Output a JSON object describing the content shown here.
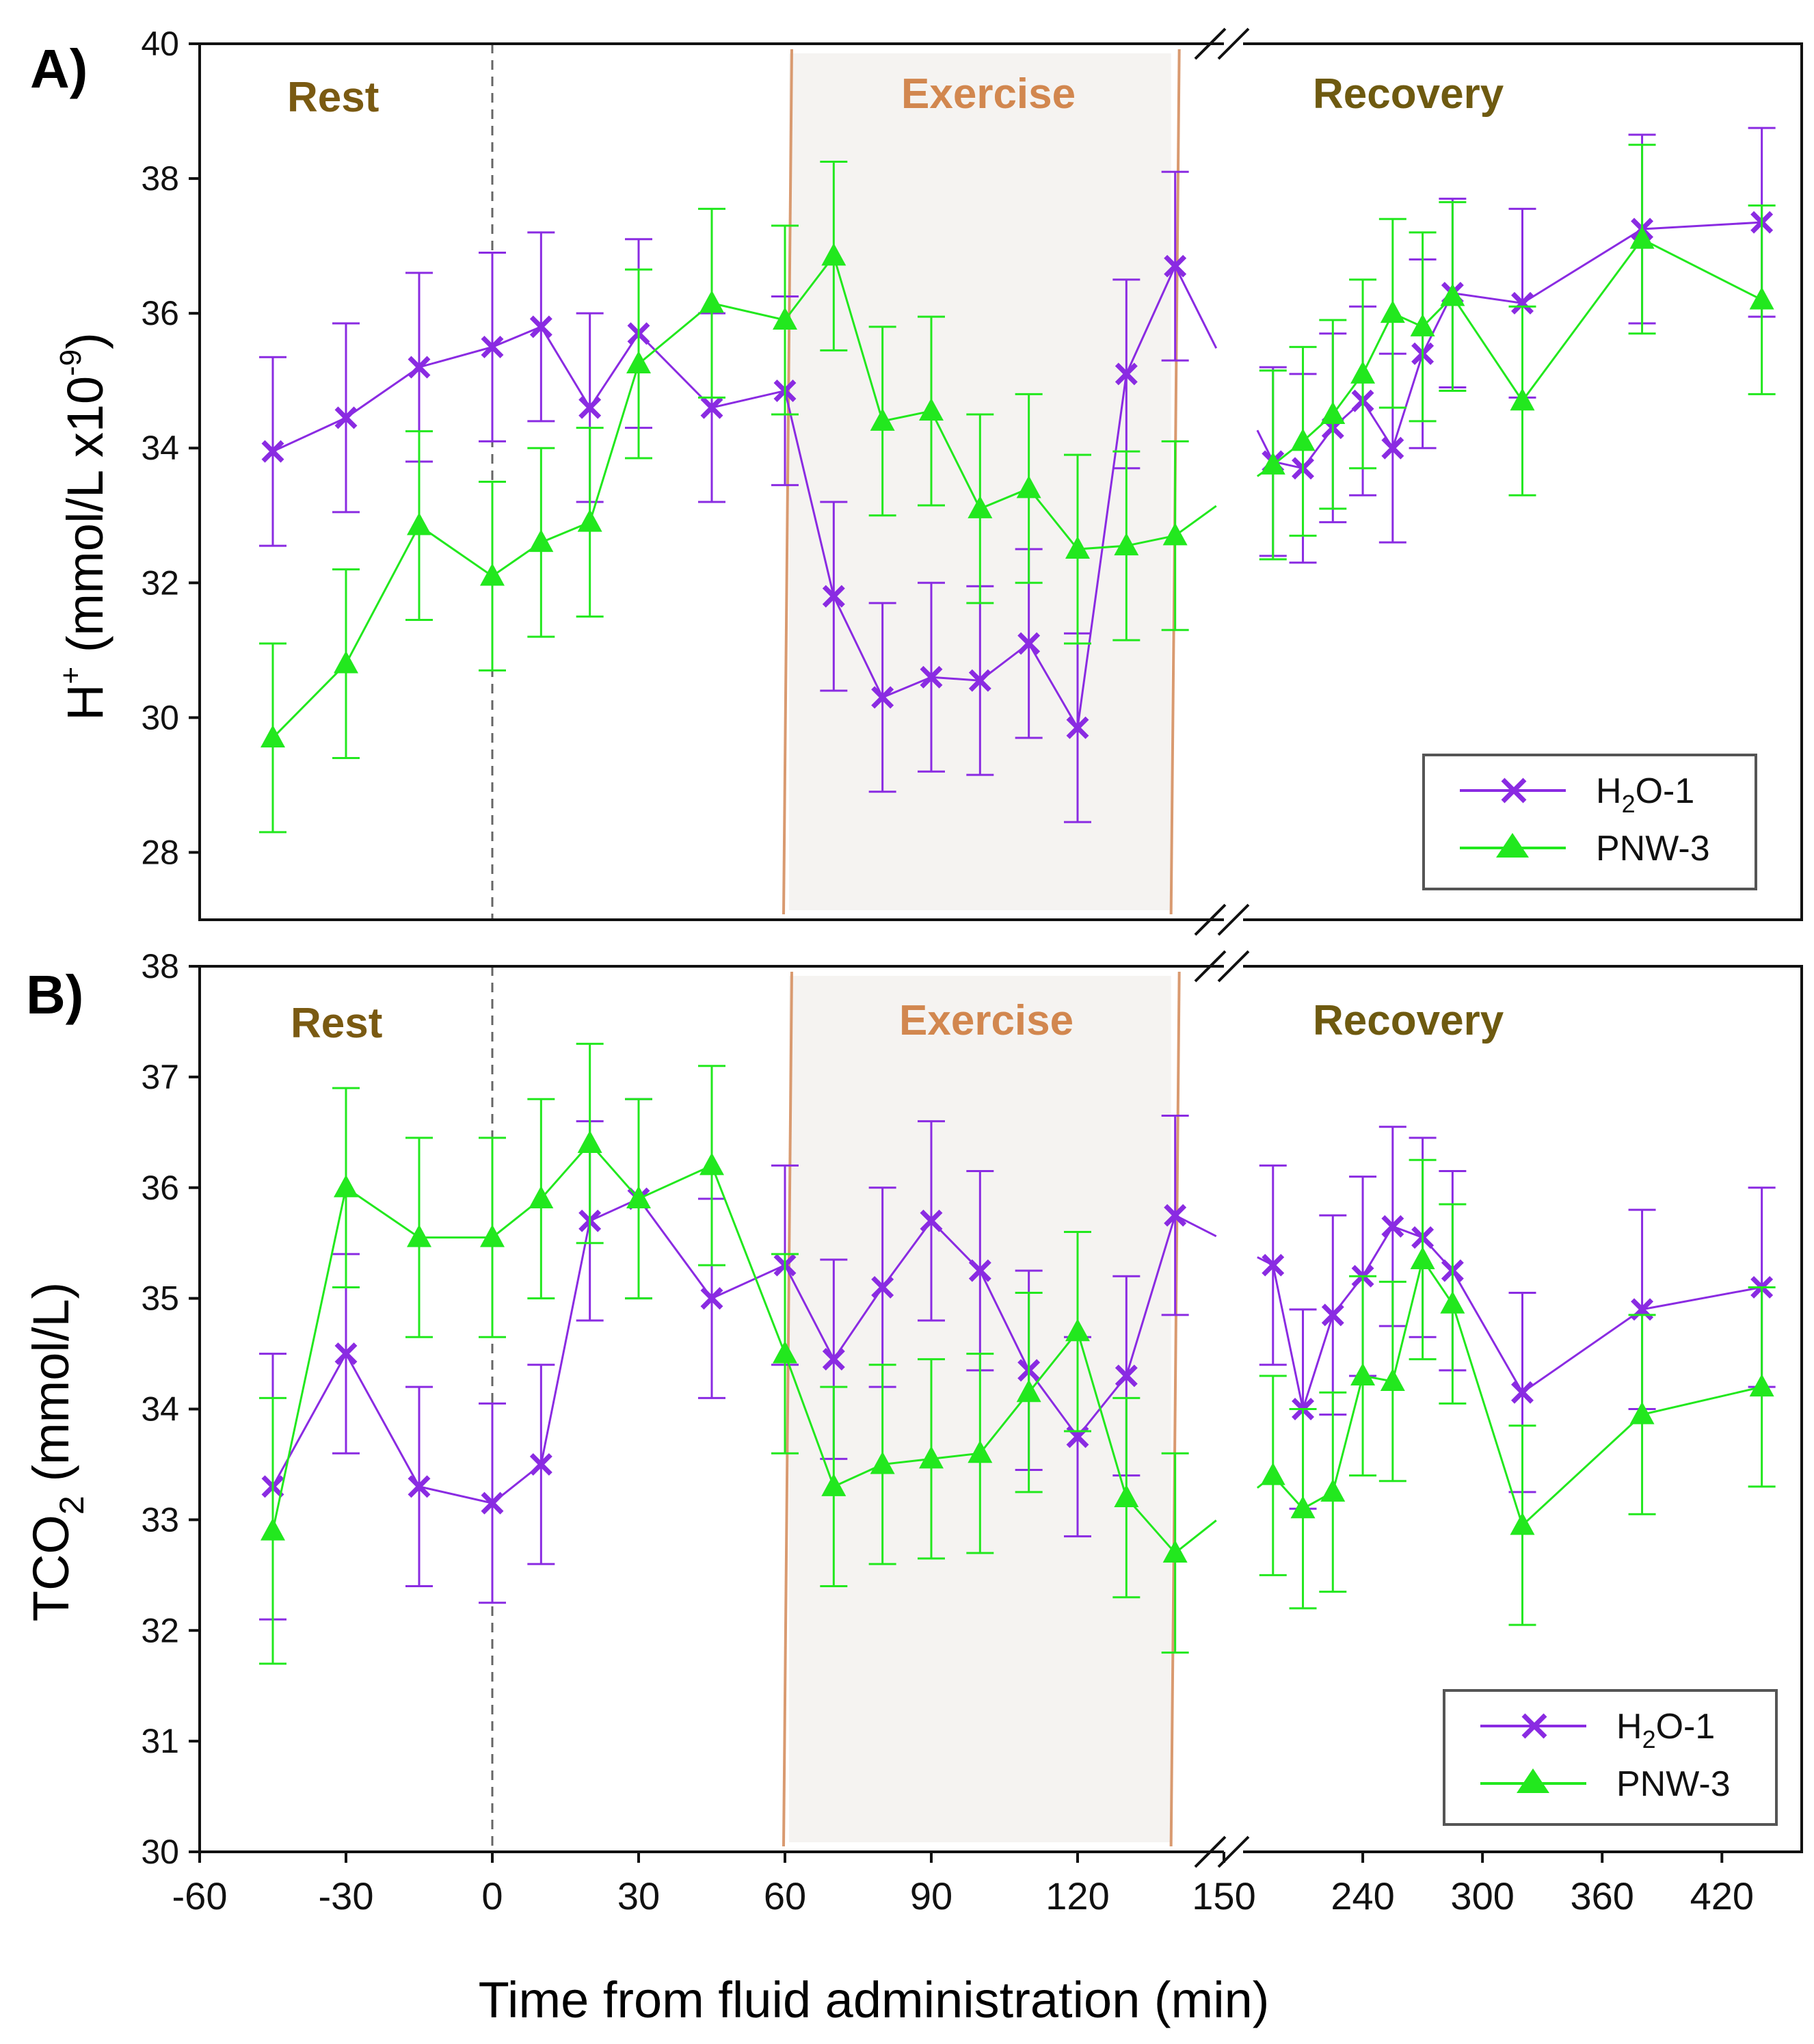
{
  "colors": {
    "h2o": "#8a2be2",
    "pnw": "#22e81e",
    "rest": "#7a5a12",
    "exercise": "#d2874f",
    "recovery": "#6e5a10",
    "exercise_band": "#f5f3f1",
    "exercise_border": "#d99a70"
  },
  "chart_data": [
    {
      "type": "line",
      "panel_label": "A)",
      "ylabel_main": "H",
      "ylabel_sup": "+",
      "ylabel_rest": " (mmol/L x10",
      "ylabel_exp": "-9",
      "ylabel_end": ")",
      "xlabel": "Time from fluid administration (min)",
      "ylim": [
        27,
        40
      ],
      "yticks": [
        28,
        30,
        32,
        34,
        36,
        38,
        40
      ],
      "phases": {
        "rest": "Rest",
        "exercise": "Exercise",
        "recovery": "Recovery"
      },
      "legend_position": "bottom-right",
      "series": [
        {
          "name": "H2O-1",
          "legend_main": "H",
          "legend_sub": "2",
          "legend_rest": "O-1",
          "marker": "x",
          "color_key": "h2o",
          "x": [
            -45,
            -30,
            -15,
            0,
            10,
            20,
            30,
            45,
            60,
            70,
            80,
            90,
            100,
            110,
            120,
            130,
            140,
            195,
            210,
            225,
            240,
            255,
            270,
            285,
            320,
            380,
            440
          ],
          "y": [
            33.95,
            34.45,
            35.2,
            35.5,
            35.8,
            34.6,
            35.7,
            34.6,
            34.85,
            31.8,
            30.3,
            30.6,
            30.55,
            31.1,
            29.85,
            35.1,
            36.7,
            33.8,
            33.7,
            34.3,
            34.7,
            34.0,
            35.4,
            36.3,
            36.15,
            37.25,
            37.35
          ],
          "err": [
            1.4,
            1.4,
            1.4,
            1.4,
            1.4,
            1.4,
            1.4,
            1.4,
            1.4,
            1.4,
            1.4,
            1.4,
            1.4,
            1.4,
            1.4,
            1.4,
            1.4,
            1.4,
            1.4,
            1.4,
            1.4,
            1.4,
            1.4,
            1.4,
            1.4,
            1.4,
            1.4
          ]
        },
        {
          "name": "PNW-3",
          "legend_main": "PNW-3",
          "marker": "triangle",
          "color_key": "pnw",
          "x": [
            -45,
            -30,
            -15,
            0,
            10,
            20,
            30,
            45,
            60,
            70,
            80,
            90,
            100,
            110,
            120,
            130,
            140,
            195,
            210,
            225,
            240,
            255,
            270,
            285,
            320,
            380,
            440
          ],
          "y": [
            29.7,
            30.8,
            32.85,
            32.1,
            32.6,
            32.9,
            35.25,
            36.15,
            35.9,
            36.85,
            34.4,
            34.55,
            33.1,
            33.4,
            32.5,
            32.55,
            32.7,
            33.75,
            34.1,
            34.5,
            35.1,
            36.0,
            35.8,
            36.25,
            34.7,
            37.1,
            36.2
          ],
          "err": [
            1.4,
            1.4,
            1.4,
            1.4,
            1.4,
            1.4,
            1.4,
            1.4,
            1.4,
            1.4,
            1.4,
            1.4,
            1.4,
            1.4,
            1.4,
            1.4,
            1.4,
            1.4,
            1.4,
            1.4,
            1.4,
            1.4,
            1.4,
            1.4,
            1.4,
            1.4,
            1.4
          ]
        }
      ]
    },
    {
      "type": "line",
      "panel_label": "B)",
      "ylabel_main": "TCO",
      "ylabel_sub": "2",
      "ylabel_end": " (mmol/L)",
      "xlabel": "Time from fluid administration (min)",
      "ylim": [
        30,
        38
      ],
      "yticks": [
        30,
        31,
        32,
        33,
        34,
        35,
        36,
        37,
        38
      ],
      "xticks_left": [
        -60,
        -30,
        0,
        30,
        60,
        90,
        120,
        150
      ],
      "xticks_right": [
        240,
        300,
        360,
        420
      ],
      "phases": {
        "rest": "Rest",
        "exercise": "Exercise",
        "recovery": "Recovery"
      },
      "legend_position": "bottom-right",
      "series": [
        {
          "name": "H2O-1",
          "legend_main": "H",
          "legend_sub": "2",
          "legend_rest": "O-1",
          "marker": "x",
          "color_key": "h2o",
          "x": [
            -45,
            -30,
            -15,
            0,
            10,
            20,
            30,
            45,
            60,
            70,
            80,
            90,
            100,
            110,
            120,
            130,
            140,
            195,
            210,
            225,
            240,
            255,
            270,
            285,
            320,
            380,
            440
          ],
          "y": [
            33.3,
            34.5,
            33.3,
            33.15,
            33.5,
            35.7,
            35.9,
            35.0,
            35.3,
            34.45,
            35.1,
            35.7,
            35.25,
            34.35,
            33.75,
            34.3,
            35.75,
            35.3,
            34.0,
            34.85,
            35.2,
            35.65,
            35.55,
            35.25,
            34.15,
            34.9,
            35.1
          ],
          "err": [
            1.2,
            0.9,
            0.9,
            0.9,
            0.9,
            0.9,
            0.9,
            0.9,
            0.9,
            0.9,
            0.9,
            0.9,
            0.9,
            0.9,
            0.9,
            0.9,
            0.9,
            0.9,
            0.9,
            0.9,
            0.9,
            0.9,
            0.9,
            0.9,
            0.9,
            0.9,
            0.9
          ]
        },
        {
          "name": "PNW-3",
          "legend_main": "PNW-3",
          "marker": "triangle",
          "color_key": "pnw",
          "x": [
            -45,
            -30,
            -15,
            0,
            10,
            20,
            30,
            45,
            60,
            70,
            80,
            90,
            100,
            110,
            120,
            130,
            140,
            195,
            210,
            225,
            240,
            255,
            270,
            285,
            320,
            380,
            440
          ],
          "y": [
            32.9,
            36.0,
            35.55,
            35.55,
            35.9,
            36.4,
            35.9,
            36.2,
            34.5,
            33.3,
            33.5,
            33.55,
            33.6,
            34.15,
            34.7,
            33.2,
            32.7,
            33.4,
            33.1,
            33.25,
            34.3,
            34.25,
            35.35,
            34.95,
            32.95,
            33.95,
            34.2
          ],
          "err": [
            1.2,
            0.9,
            0.9,
            0.9,
            0.9,
            0.9,
            0.9,
            0.9,
            0.9,
            0.9,
            0.9,
            0.9,
            0.9,
            0.9,
            0.9,
            0.9,
            0.9,
            0.9,
            0.9,
            0.9,
            0.9,
            0.9,
            0.9,
            0.9,
            0.9,
            0.9,
            0.9
          ]
        }
      ]
    }
  ]
}
